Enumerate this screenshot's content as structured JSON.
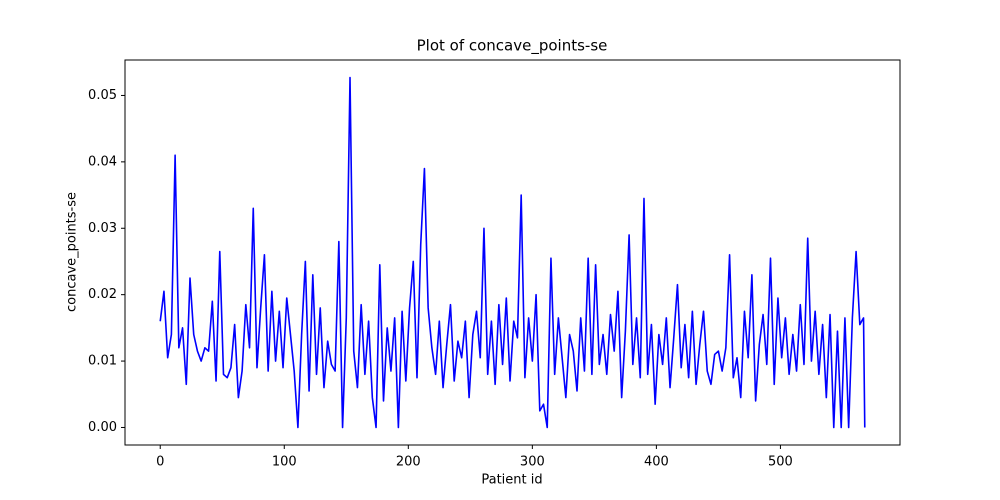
{
  "chart_data": {
    "type": "line",
    "title": "Plot of concave_points-se",
    "x_label": "Patient id",
    "y_label": "concave_points-se",
    "color": "#0000ff",
    "xlim": [
      -28.4,
      596.4
    ],
    "ylim": [
      -0.00264,
      0.05534
    ],
    "xticks": [
      0,
      100,
      200,
      300,
      400,
      500
    ],
    "yticks": [
      {
        "value": 0,
        "label": "0.00"
      },
      0.01,
      0.02,
      0.03,
      0.04,
      0.05
    ],
    "x": [
      0,
      3,
      6,
      9,
      12,
      15,
      18,
      21,
      24,
      27,
      30,
      33,
      36,
      39,
      42,
      45,
      48,
      51,
      54,
      57,
      60,
      63,
      66,
      69,
      72,
      75,
      78,
      81,
      84,
      87,
      90,
      93,
      96,
      99,
      102,
      105,
      108,
      111,
      114,
      117,
      120,
      123,
      126,
      129,
      132,
      135,
      138,
      141,
      144,
      147,
      150,
      153,
      156,
      159,
      162,
      165,
      168,
      171,
      174,
      177,
      180,
      183,
      186,
      189,
      192,
      195,
      198,
      201,
      204,
      207,
      210,
      213,
      216,
      219,
      222,
      225,
      228,
      231,
      234,
      237,
      240,
      243,
      246,
      249,
      252,
      255,
      258,
      261,
      264,
      267,
      270,
      273,
      276,
      279,
      282,
      285,
      288,
      291,
      294,
      297,
      300,
      303,
      306,
      309,
      312,
      315,
      318,
      321,
      324,
      327,
      330,
      333,
      336,
      339,
      342,
      345,
      348,
      351,
      354,
      357,
      360,
      363,
      366,
      369,
      372,
      375,
      378,
      381,
      384,
      387,
      390,
      393,
      396,
      399,
      402,
      405,
      408,
      411,
      414,
      417,
      420,
      423,
      426,
      429,
      432,
      435,
      438,
      441,
      444,
      447,
      450,
      453,
      456,
      459,
      462,
      465,
      468,
      471,
      474,
      477,
      480,
      483,
      486,
      489,
      492,
      495,
      498,
      501,
      504,
      507,
      510,
      513,
      516,
      519,
      522,
      525,
      528,
      531,
      534,
      537,
      540,
      543,
      546,
      549,
      552,
      555,
      558,
      561,
      564,
      567,
      568
    ],
    "values": [
      0.016,
      0.0205,
      0.0105,
      0.014,
      0.041,
      0.012,
      0.015,
      0.0065,
      0.0225,
      0.014,
      0.0115,
      0.01,
      0.012,
      0.0115,
      0.019,
      0.007,
      0.0265,
      0.008,
      0.0075,
      0.009,
      0.0155,
      0.0045,
      0.0085,
      0.0185,
      0.012,
      0.033,
      0.009,
      0.018,
      0.026,
      0.0085,
      0.0205,
      0.01,
      0.0175,
      0.009,
      0.0195,
      0.014,
      0.0085,
      0.0,
      0.014,
      0.025,
      0.0055,
      0.023,
      0.008,
      0.018,
      0.006,
      0.013,
      0.0095,
      0.0085,
      0.028,
      0.0,
      0.0165,
      0.0527,
      0.0115,
      0.006,
      0.0185,
      0.008,
      0.016,
      0.0045,
      0.0,
      0.0245,
      0.004,
      0.015,
      0.0085,
      0.0165,
      0.0,
      0.0175,
      0.007,
      0.018,
      0.025,
      0.0075,
      0.0275,
      0.039,
      0.018,
      0.012,
      0.008,
      0.016,
      0.006,
      0.0125,
      0.0185,
      0.007,
      0.013,
      0.0105,
      0.016,
      0.0045,
      0.014,
      0.0175,
      0.0105,
      0.03,
      0.008,
      0.016,
      0.0065,
      0.0185,
      0.0095,
      0.0195,
      0.007,
      0.016,
      0.0135,
      0.035,
      0.0075,
      0.0165,
      0.01,
      0.02,
      0.0025,
      0.0035,
      0.0,
      0.0255,
      0.008,
      0.0165,
      0.0105,
      0.0045,
      0.014,
      0.0115,
      0.0055,
      0.0165,
      0.0085,
      0.0255,
      0.008,
      0.0245,
      0.0095,
      0.014,
      0.008,
      0.017,
      0.0115,
      0.0205,
      0.0045,
      0.0145,
      0.029,
      0.0095,
      0.0165,
      0.0075,
      0.0345,
      0.008,
      0.0155,
      0.0035,
      0.014,
      0.0095,
      0.0165,
      0.006,
      0.0135,
      0.0215,
      0.009,
      0.0155,
      0.0075,
      0.0175,
      0.0065,
      0.0125,
      0.0175,
      0.0085,
      0.0065,
      0.011,
      0.0115,
      0.0085,
      0.012,
      0.026,
      0.0075,
      0.0105,
      0.0045,
      0.0175,
      0.0105,
      0.023,
      0.004,
      0.0125,
      0.017,
      0.0095,
      0.0255,
      0.0065,
      0.0195,
      0.0105,
      0.0165,
      0.008,
      0.014,
      0.0085,
      0.0185,
      0.0095,
      0.0285,
      0.01,
      0.0175,
      0.008,
      0.0155,
      0.0045,
      0.017,
      0.0,
      0.0145,
      0.0,
      0.0165,
      0.0,
      0.0165,
      0.0265,
      0.0155,
      0.0165,
      0.0
    ]
  }
}
